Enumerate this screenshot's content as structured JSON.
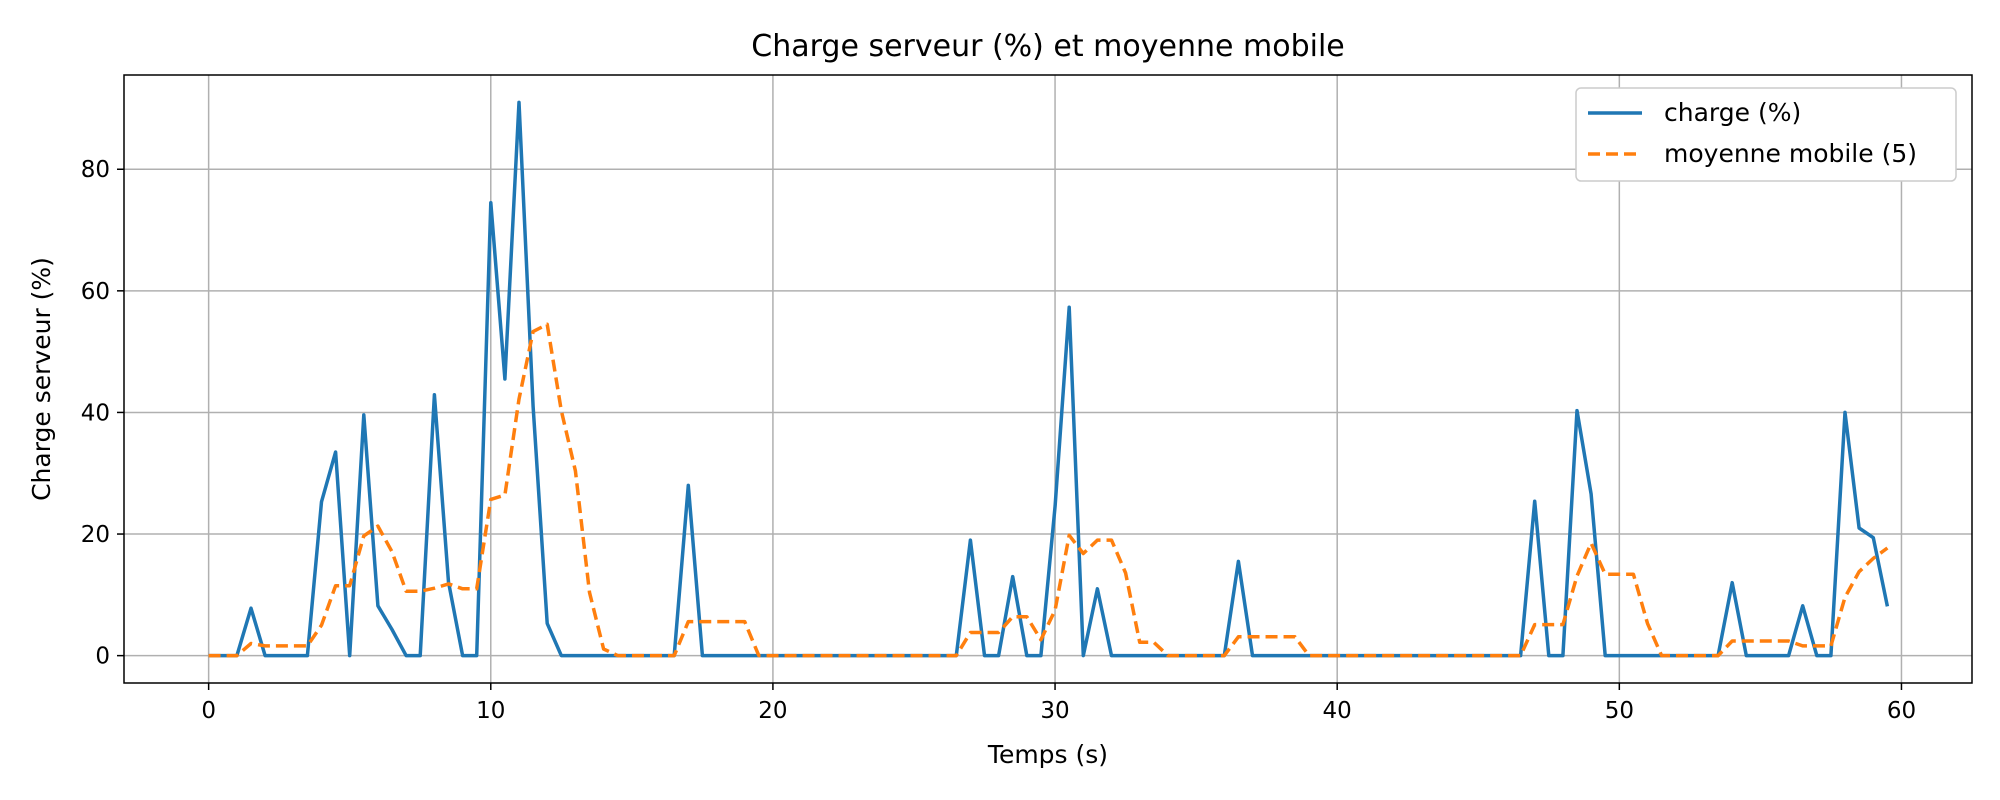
{
  "chart_data": {
    "type": "line",
    "title": "Charge serveur (%) et moyenne mobile",
    "xlabel": "Temps (s)",
    "ylabel": "Charge serveur (%)",
    "xlim": [
      -3,
      62.5
    ],
    "ylim": [
      -4.5,
      95.5
    ],
    "x_ticks": [
      0,
      10,
      20,
      30,
      40,
      50,
      60
    ],
    "y_ticks": [
      0,
      20,
      40,
      60,
      80
    ],
    "grid": true,
    "legend_position": "top-right",
    "x": [
      0,
      0.5,
      1,
      1.5,
      2,
      2.5,
      3,
      3.5,
      4,
      4.5,
      5,
      5.5,
      6,
      6.5,
      7,
      7.5,
      8,
      8.5,
      9,
      9.5,
      10,
      10.5,
      11,
      11.5,
      12,
      12.5,
      13,
      13.5,
      14,
      14.5,
      15,
      15.5,
      16,
      16.5,
      17,
      17.5,
      18,
      18.5,
      19,
      19.5,
      20,
      20.5,
      21,
      21.5,
      22,
      22.5,
      23,
      23.5,
      24,
      24.5,
      25,
      25.5,
      26,
      26.5,
      27,
      27.5,
      28,
      28.5,
      29,
      29.5,
      30,
      30.5,
      31,
      31.5,
      32,
      32.5,
      33,
      33.5,
      34,
      34.5,
      35,
      35.5,
      36,
      36.5,
      37,
      37.5,
      38,
      38.5,
      39,
      39.5,
      40,
      40.5,
      41,
      41.5,
      42,
      42.5,
      43,
      43.5,
      44,
      44.5,
      45,
      45.5,
      46,
      46.5,
      47,
      47.5,
      48,
      48.5,
      49,
      49.5,
      50,
      50.5,
      51,
      51.5,
      52,
      52.5,
      53,
      53.5,
      54,
      54.5,
      55,
      55.5,
      56,
      56.5,
      57,
      57.5,
      58,
      58.5,
      59,
      59.5
    ],
    "series": [
      {
        "name": "charge (%)",
        "color": "#1f77b4",
        "style": "solid",
        "values": [
          0,
          0,
          0,
          7.8,
          0,
          0,
          0,
          0,
          25.3,
          33.5,
          0,
          39.6,
          8.2,
          4.3,
          0,
          0,
          42.9,
          12.1,
          0,
          0,
          74.5,
          45.5,
          91,
          41,
          5.3,
          0,
          0,
          0,
          0,
          0,
          0,
          0,
          0,
          0,
          28,
          0,
          0,
          0,
          0,
          0,
          0,
          0,
          0,
          0,
          0,
          0,
          0,
          0,
          0,
          0,
          0,
          0,
          0,
          0,
          19,
          0,
          0,
          13,
          0,
          0,
          24.6,
          57.3,
          0,
          11,
          0,
          0,
          0,
          0,
          0,
          0,
          0,
          0,
          0,
          15.5,
          0,
          0,
          0,
          0,
          0,
          0,
          0,
          0,
          0,
          0,
          0,
          0,
          0,
          0,
          0,
          0,
          0,
          0,
          0,
          0,
          25.4,
          0,
          0,
          40.3,
          26.6,
          0,
          0,
          0,
          0,
          0,
          0,
          0,
          0,
          0,
          12,
          0,
          0,
          0,
          0,
          8.2,
          0,
          0,
          40,
          21,
          19.4,
          8.1
        ]
      },
      {
        "name": "moyenne mobile (5)",
        "color": "#ff7f0e",
        "style": "dashed",
        "values": [
          0,
          0,
          0,
          2,
          1.6,
          1.6,
          1.6,
          1.6,
          5,
          11.5,
          11.5,
          19.7,
          21.3,
          17.1,
          10.6,
          10.6,
          11.1,
          11.8,
          11,
          11,
          25.7,
          26.4,
          42.2,
          53.3,
          54.5,
          40.3,
          30.4,
          10.4,
          1.1,
          0,
          0,
          0,
          0,
          0,
          5.6,
          5.6,
          5.6,
          5.6,
          5.6,
          0,
          0,
          0,
          0,
          0,
          0,
          0,
          0,
          0,
          0,
          0,
          0,
          0,
          0,
          0,
          3.8,
          3.8,
          3.8,
          6.4,
          6.4,
          2.6,
          7.5,
          19.8,
          16.8,
          19,
          19,
          13.6,
          2.2,
          2.2,
          0,
          0,
          0,
          0,
          0,
          3.1,
          3.1,
          3.1,
          3.1,
          3.1,
          0,
          0,
          0,
          0,
          0,
          0,
          0,
          0,
          0,
          0,
          0,
          0,
          0,
          0,
          0,
          0,
          5.1,
          5.1,
          5.1,
          13.1,
          18.5,
          13.4,
          13.4,
          13.4,
          5.3,
          0,
          0,
          0,
          0,
          0,
          2.4,
          2.4,
          2.4,
          2.4,
          2.4,
          1.6,
          1.6,
          1.6,
          9.6,
          13.8,
          16,
          17.7
        ]
      }
    ]
  }
}
